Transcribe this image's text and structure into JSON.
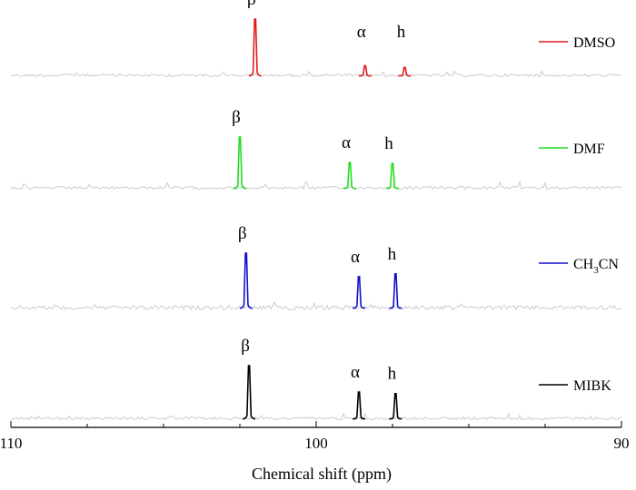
{
  "chart_data": {
    "type": "line",
    "title": "",
    "xlabel": "Chemical shift (ppm)",
    "ylabel": "",
    "xlim": [
      110,
      90
    ],
    "x_reversed": true,
    "xticks": [
      110,
      100,
      90
    ],
    "grid": false,
    "legend_placement": "right of each trace",
    "baseline_color": "#cccccc",
    "series": [
      {
        "name": "DMSO",
        "color": "#e41a1c",
        "peaks": [
          {
            "label": "β",
            "shift": 102.0,
            "height": 1.0
          },
          {
            "label": "α",
            "shift": 98.4,
            "height": 0.17
          },
          {
            "label": "h",
            "shift": 97.1,
            "height": 0.14
          }
        ]
      },
      {
        "name": "DMF",
        "color": "#22dd22",
        "peaks": [
          {
            "label": "β",
            "shift": 102.5,
            "height": 1.0
          },
          {
            "label": "α",
            "shift": 98.9,
            "height": 0.5
          },
          {
            "label": "h",
            "shift": 97.5,
            "height": 0.48
          }
        ]
      },
      {
        "name": "CH3CN",
        "name_main": "CH",
        "name_sub": "3",
        "name_tail": "CN",
        "color": "#1010cc",
        "peaks": [
          {
            "label": "β",
            "shift": 102.3,
            "height": 1.0
          },
          {
            "label": "α",
            "shift": 98.6,
            "height": 0.57
          },
          {
            "label": "h",
            "shift": 97.4,
            "height": 0.62
          }
        ]
      },
      {
        "name": "MIBK",
        "color": "#000000",
        "peaks": [
          {
            "label": "β",
            "shift": 102.2,
            "height": 1.0
          },
          {
            "label": "α",
            "shift": 98.6,
            "height": 0.5
          },
          {
            "label": "h",
            "shift": 97.4,
            "height": 0.47
          }
        ]
      }
    ]
  }
}
